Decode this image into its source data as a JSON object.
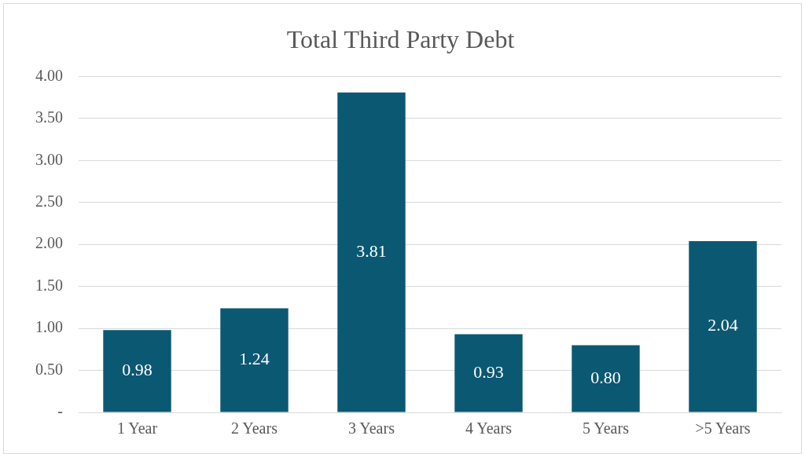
{
  "chart_data": {
    "type": "bar",
    "title": "Total Third Party Debt",
    "categories": [
      "1 Year",
      "2 Years",
      "3 Years",
      "4 Years",
      "5 Years",
      ">5 Years"
    ],
    "values": [
      0.98,
      1.24,
      3.81,
      0.93,
      0.8,
      2.04
    ],
    "color": "#0b5873",
    "ylim": [
      0,
      4
    ],
    "yticks": [
      {
        "value": 0,
        "label": "-"
      },
      {
        "value": 0.5,
        "label": "0.50"
      },
      {
        "value": 1,
        "label": "1.00"
      },
      {
        "value": 1.5,
        "label": "1.50"
      },
      {
        "value": 2,
        "label": "2.00"
      },
      {
        "value": 2.5,
        "label": "2.50"
      },
      {
        "value": 3,
        "label": "3.00"
      },
      {
        "value": 3.5,
        "label": "3.50"
      },
      {
        "value": 4,
        "label": "4.00"
      }
    ],
    "value_labels": [
      "0.98",
      "1.24",
      "3.81",
      "0.93",
      "0.80",
      "2.04"
    ],
    "grid": "y"
  }
}
